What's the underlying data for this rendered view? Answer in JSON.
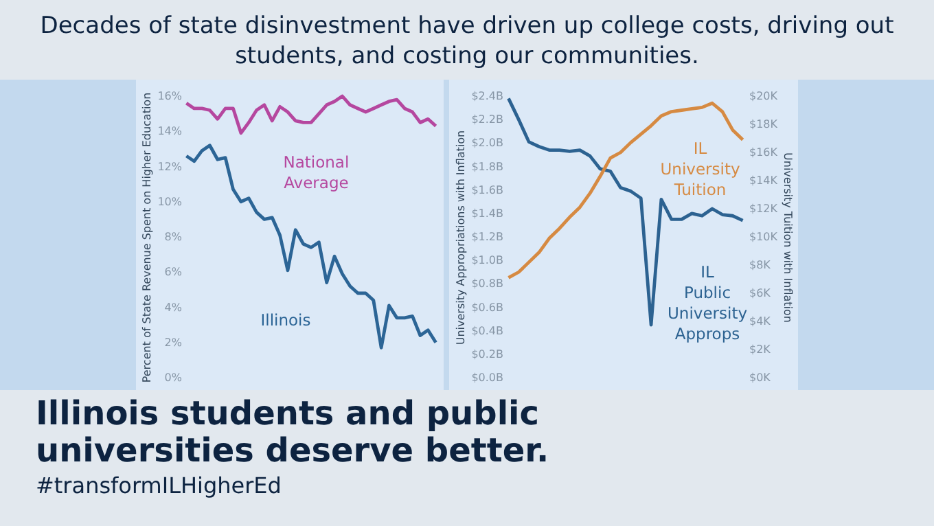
{
  "chart_data": [
    {
      "type": "line",
      "title": "Decades of state disinvestment have driven up college costs, driving out students, and costing our communities.",
      "annotations": [
        "Illinois students and public universities deserve better.",
        "#transformILHigherEd"
      ],
      "ylabel": "Percent of State Revenue Spent on Higher Education",
      "tick_labels": "y",
      "categories": [
        null,
        null,
        null,
        null,
        null,
        null,
        null,
        null,
        null,
        null,
        null,
        null,
        null,
        null,
        null,
        null,
        null,
        null,
        null,
        null,
        null,
        null,
        null,
        null,
        null,
        null,
        null,
        null,
        null,
        null,
        null,
        null,
        null
      ],
      "ylim": [
        0,
        16
      ],
      "yticks": [
        {
          "value": 0,
          "label": "0%"
        },
        {
          "value": 2,
          "label": "2%"
        },
        {
          "value": 4,
          "label": "4%"
        },
        {
          "value": 6,
          "label": "6%"
        },
        {
          "value": 8,
          "label": "8%"
        },
        {
          "value": 10,
          "label": "10%"
        },
        {
          "value": 12,
          "label": "12%"
        },
        {
          "value": 14,
          "label": "14%"
        },
        {
          "value": 16,
          "label": "16%"
        }
      ],
      "series": [
        {
          "name": "National Average",
          "color": "#b5479f",
          "values": [
            15.6,
            15.3,
            15.3,
            15.2,
            14.7,
            15.3,
            15.3,
            13.9,
            14.5,
            15.2,
            15.5,
            14.6,
            15.4,
            15.1,
            14.6,
            14.5,
            14.5,
            15.0,
            15.5,
            15.7,
            16.0,
            15.5,
            15.3,
            15.1,
            15.3,
            15.5,
            15.7,
            15.8,
            15.3,
            15.1,
            14.5,
            14.7,
            14.3
          ]
        },
        {
          "name": "Illinois",
          "color": "#2c6596",
          "values": [
            12.6,
            12.3,
            12.9,
            13.2,
            12.4,
            12.5,
            10.7,
            10.0,
            10.2,
            9.4,
            9.0,
            9.1,
            8.1,
            6.1,
            8.4,
            7.6,
            7.4,
            7.7,
            5.4,
            6.9,
            5.9,
            5.2,
            4.8,
            4.8,
            4.4,
            1.7,
            4.1,
            3.4,
            3.4,
            3.5,
            2.4,
            2.7,
            2.0
          ]
        }
      ]
    },
    {
      "type": "line",
      "ylabel": "University Appropriations with Inflation",
      "y2label": "University Tuition with Inflation",
      "tick_labels": "y",
      "categories": [
        null,
        null,
        null,
        null,
        null,
        null,
        null,
        null,
        null,
        null,
        null,
        null,
        null,
        null,
        null,
        null,
        null,
        null,
        null,
        null,
        null,
        null,
        null,
        null
      ],
      "ylim": [
        0,
        2.4
      ],
      "yticks": [
        {
          "value": 0,
          "label": "$0.0B"
        },
        {
          "value": 0.2,
          "label": "$0.2B"
        },
        {
          "value": 0.4,
          "label": "$0.4B"
        },
        {
          "value": 0.6,
          "label": "$0.6B"
        },
        {
          "value": 0.8,
          "label": "$0.8B"
        },
        {
          "value": 1.0,
          "label": "$1.0B"
        },
        {
          "value": 1.2,
          "label": "$1.2B"
        },
        {
          "value": 1.4,
          "label": "$1.4B"
        },
        {
          "value": 1.6,
          "label": "$1.6B"
        },
        {
          "value": 1.8,
          "label": "$1.8B"
        },
        {
          "value": 2.0,
          "label": "$2.0B"
        },
        {
          "value": 2.2,
          "label": "$2.2B"
        },
        {
          "value": 2.4,
          "label": "$2.4B"
        }
      ],
      "y2lim": [
        0,
        20
      ],
      "y2ticks": [
        {
          "value": 0,
          "label": "$0K"
        },
        {
          "value": 2,
          "label": "$2K"
        },
        {
          "value": 4,
          "label": "$4K"
        },
        {
          "value": 6,
          "label": "$6K"
        },
        {
          "value": 8,
          "label": "$8K"
        },
        {
          "value": 10,
          "label": "$10K"
        },
        {
          "value": 12,
          "label": "$12K"
        },
        {
          "value": 14,
          "label": "$14K"
        },
        {
          "value": 16,
          "label": "$16K"
        },
        {
          "value": 18,
          "label": "$18K"
        },
        {
          "value": 20,
          "label": "$20K"
        }
      ],
      "series": [
        {
          "name": "IL Public University Approps",
          "color": "#2c6291",
          "values": [
            2.38,
            2.2,
            2.01,
            1.97,
            1.94,
            1.94,
            1.93,
            1.94,
            1.89,
            1.78,
            1.76,
            1.62,
            1.59,
            1.53,
            0.45,
            1.52,
            1.35,
            1.35,
            1.4,
            1.38,
            1.44,
            1.39,
            1.38,
            1.34
          ]
        },
        {
          "name": "IL University Tuition",
          "color": "#d68a42",
          "axis": "y2",
          "values": [
            7.1,
            7.5,
            8.2,
            8.9,
            9.9,
            10.6,
            11.4,
            12.1,
            13.1,
            14.3,
            15.6,
            16.0,
            16.7,
            17.3,
            17.9,
            18.6,
            18.9,
            19.0,
            19.1,
            19.2,
            19.5,
            18.9,
            17.6,
            16.9
          ]
        }
      ]
    }
  ]
}
